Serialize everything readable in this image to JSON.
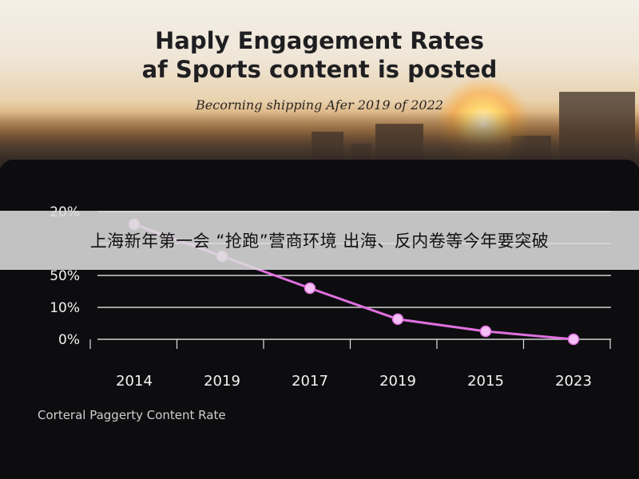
{
  "header": {
    "title_line1": "Haply Engagement Rates",
    "title_line2": "af Sports content is posted",
    "subtitle": "Becorning shipping Afer 2019 of 2022"
  },
  "banner": {
    "text": "上海新年第一会 “抢跑”营商环境 出海、反内卷等今年要突破"
  },
  "footnote": "Corteral Paggerty Content Rate",
  "chart_data": {
    "type": "line",
    "title": "Haply Engagement Rates af Sports content is posted",
    "subtitle": "Becorning shipping Afer 2019 of 2022",
    "xlabel": "Corteral Paggerty Content Rate",
    "ylabel": "",
    "categories": [
      "2014",
      "2019",
      "2017",
      "2019",
      "2015",
      "2023"
    ],
    "y_tick_labels": [
      "0%",
      "10%",
      "50%",
      "",
      "20%"
    ],
    "series": [
      {
        "values": [
          36,
          26,
          16,
          6.3,
          2.5,
          0
        ],
        "color": "#e070e0"
      }
    ],
    "ylim": [
      0,
      40
    ],
    "grid": "horizontal",
    "legend": "none"
  }
}
